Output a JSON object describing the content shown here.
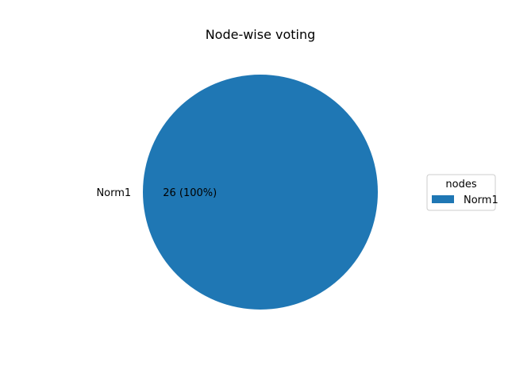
{
  "chart_data": {
    "type": "pie",
    "title": "Node-wise voting",
    "slices": [
      {
        "label": "Norm1",
        "value": 26,
        "pct_label": "26 (100%)",
        "color": "#1f77b4"
      }
    ],
    "legend": {
      "title": "nodes",
      "placement": "center-right",
      "entries": [
        "Norm1"
      ]
    }
  }
}
